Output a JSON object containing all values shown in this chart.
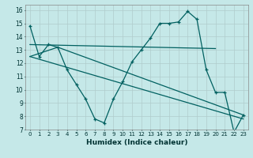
{
  "title": "",
  "xlabel": "Humidex (Indice chaleur)",
  "background_color": "#c5e8e8",
  "grid_color": "#b0cccc",
  "line_color": "#006060",
  "xlim": [
    -0.5,
    23.5
  ],
  "ylim": [
    7,
    16.4
  ],
  "xticks": [
    0,
    1,
    2,
    3,
    4,
    5,
    6,
    7,
    8,
    9,
    10,
    11,
    12,
    13,
    14,
    15,
    16,
    17,
    18,
    19,
    20,
    21,
    22,
    23
  ],
  "yticks": [
    7,
    8,
    9,
    10,
    11,
    12,
    13,
    14,
    15,
    16
  ],
  "series_main": {
    "x": [
      0,
      1,
      2,
      3,
      4,
      5,
      6,
      7,
      8,
      9,
      10,
      11,
      12,
      13,
      14,
      15,
      16,
      17,
      18,
      19,
      20,
      21,
      22,
      23
    ],
    "y": [
      14.8,
      12.5,
      13.4,
      13.2,
      11.5,
      10.4,
      9.3,
      7.8,
      7.5,
      9.3,
      10.6,
      12.1,
      13.0,
      13.9,
      15.0,
      15.0,
      15.1,
      15.9,
      15.3,
      11.5,
      9.8,
      9.8,
      6.8,
      8.1
    ]
  },
  "line_flat": {
    "x": [
      0,
      20
    ],
    "y": [
      13.4,
      13.1
    ]
  },
  "line_diag1": {
    "x": [
      0,
      3,
      23
    ],
    "y": [
      12.5,
      13.2,
      8.1
    ]
  },
  "line_diag2": {
    "x": [
      0,
      23
    ],
    "y": [
      12.5,
      7.8
    ]
  }
}
